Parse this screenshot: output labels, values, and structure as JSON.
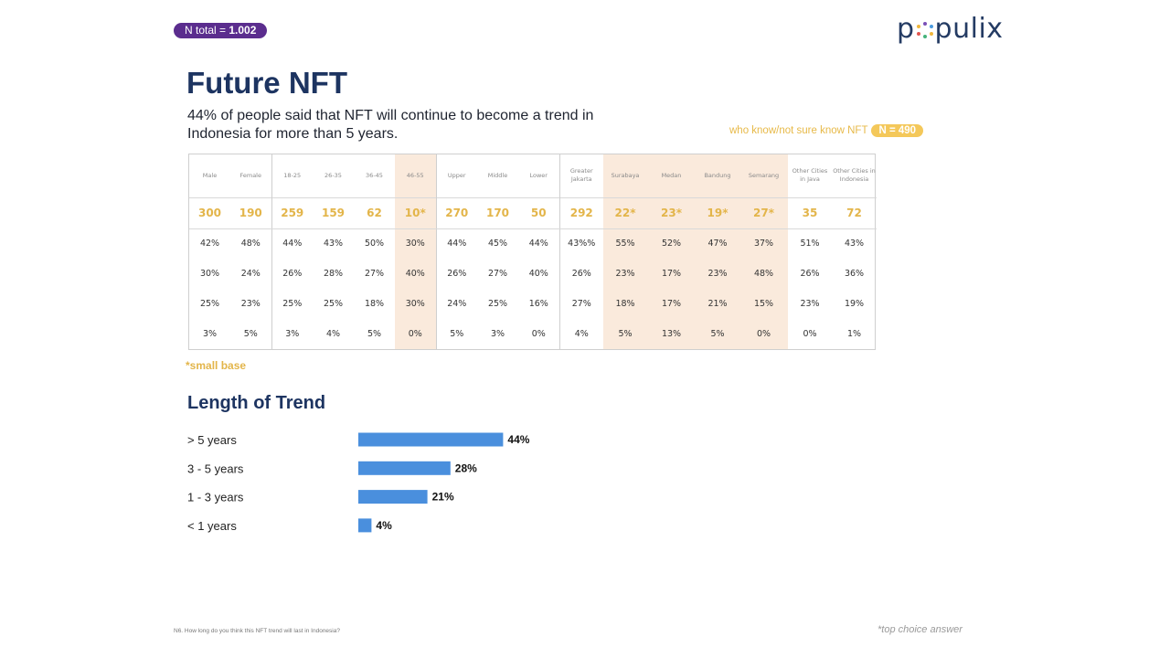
{
  "header": {
    "n_total_label": "N total = ",
    "n_total_value": "1.002",
    "logo_text_left": "p",
    "logo_text_right": "pulix"
  },
  "title": "Future NFT",
  "subtitle": "44% of people said that NFT will continue to become a trend in Indonesia for more than 5 years.",
  "respondent_note": {
    "label": "who know/not sure know NFT",
    "n": "N = 490"
  },
  "table": {
    "headers": [
      "Male",
      "Female",
      "18-25",
      "26-35",
      "36-45",
      "46-55",
      "Upper",
      "Middle",
      "Lower",
      "Greater Jakarta",
      "Surabaya",
      "Medan",
      "Bandung",
      "Semarang",
      "Other Cities in Java",
      "Other Cities in Indonesia"
    ],
    "n_values": [
      "300",
      "190",
      "259",
      "159",
      "62",
      "10*",
      "270",
      "170",
      "50",
      "292",
      "22*",
      "23*",
      "19*",
      "27*",
      "35",
      "72"
    ],
    "rows": [
      [
        "42%",
        "48%",
        "44%",
        "43%",
        "50%",
        "30%",
        "44%",
        "45%",
        "44%",
        "43%%",
        "55%",
        "52%",
        "47%",
        "37%",
        "51%",
        "43%"
      ],
      [
        "30%",
        "24%",
        "26%",
        "28%",
        "27%",
        "40%",
        "26%",
        "27%",
        "40%",
        "26%",
        "23%",
        "17%",
        "23%",
        "48%",
        "26%",
        "36%"
      ],
      [
        "25%",
        "23%",
        "25%",
        "25%",
        "18%",
        "30%",
        "24%",
        "25%",
        "16%",
        "27%",
        "18%",
        "17%",
        "21%",
        "15%",
        "23%",
        "19%"
      ],
      [
        "3%",
        "5%",
        "3%",
        "4%",
        "5%",
        "0%",
        "5%",
        "3%",
        "0%",
        "4%",
        "5%",
        "13%",
        "5%",
        "0%",
        "0%",
        "1%"
      ]
    ]
  },
  "small_base_note": "*small base",
  "chart_data": {
    "type": "bar",
    "orientation": "horizontal",
    "title": "Length of Trend",
    "categories": [
      "> 5 years",
      "3 - 5 years",
      "1 - 3 years",
      "< 1 years"
    ],
    "values": [
      44,
      28,
      21,
      4
    ],
    "value_labels": [
      "44%",
      "28%",
      "21%",
      "4%"
    ],
    "xlim": [
      0,
      100
    ],
    "bar_color": "#4a8fdd",
    "grid": false
  },
  "footnotes": {
    "question": "N6. How long do you think this NFT trend will last in Indonesia?",
    "top_choice": "*top choice answer"
  },
  "colors": {
    "navy": "#1d3461",
    "purple": "#5b2d8e",
    "gold": "#e3b54a",
    "shade": "#faeadc",
    "bar": "#4a8fdd"
  }
}
